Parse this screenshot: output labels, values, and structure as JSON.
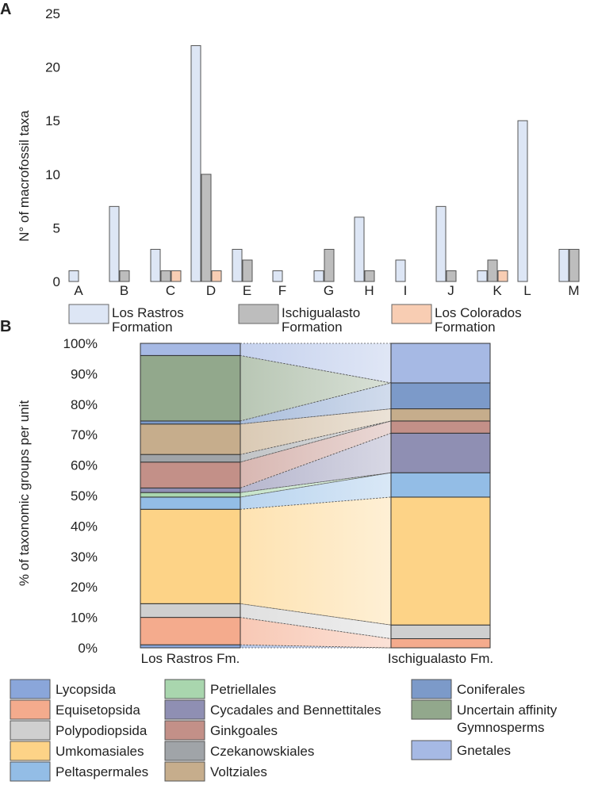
{
  "chart_data": [
    {
      "panel": "A",
      "type": "bar",
      "ylabel": "N° of macrofossil taxa",
      "xlabel": "",
      "ylim": [
        0,
        25
      ],
      "yticks": [
        0,
        5,
        10,
        15,
        20,
        25
      ],
      "categories": [
        "A",
        "B",
        "C",
        "D",
        "E",
        "F",
        "G",
        "H",
        "I",
        "J",
        "K",
        "L",
        "M"
      ],
      "series": [
        {
          "name": "Los Rastros Formation",
          "line1": "Los Rastros",
          "line2": "Formation",
          "color": "#dde6f5",
          "values": [
            1,
            7,
            3,
            22,
            3,
            1,
            1,
            6,
            2,
            7,
            1,
            15,
            3
          ]
        },
        {
          "name": "Ischigualasto Formation",
          "line1": "Ischigualasto",
          "line2": "Formation",
          "color": "#bdbdbd",
          "values": [
            0,
            1,
            1,
            10,
            2,
            0,
            3,
            1,
            0,
            1,
            2,
            0,
            3
          ]
        },
        {
          "name": "Los Colorados Formation",
          "line1": "Los Colorados",
          "line2": "Formation",
          "color": "#f8cdb3",
          "values": [
            0,
            0,
            1,
            1,
            0,
            0,
            0,
            0,
            0,
            0,
            1,
            0,
            0
          ]
        }
      ]
    },
    {
      "panel": "B",
      "type": "stacked_bar",
      "ylabel": "% of taxonomic groups per unit",
      "ylim": [
        0,
        100
      ],
      "yticks": [
        "0%",
        "10%",
        "20%",
        "30%",
        "40%",
        "50%",
        "60%",
        "70%",
        "80%",
        "90%",
        "100%"
      ],
      "bar_labels": [
        "Los Rastros Fm.",
        "Ischigualasto Fm."
      ],
      "groups": [
        {
          "name": "Lycopsida",
          "color": "#8aa6da",
          "values": [
            1,
            0
          ]
        },
        {
          "name": "Equisetopsida",
          "color": "#f4ab8d",
          "values": [
            9,
            3
          ]
        },
        {
          "name": "Polypodiopsida",
          "color": "#cfcfcf",
          "values": [
            4.5,
            4.5
          ]
        },
        {
          "name": "Umkomasiales",
          "color": "#fdd387",
          "values": [
            31,
            42
          ]
        },
        {
          "name": "Peltaspermales",
          "color": "#93bde6",
          "values": [
            4,
            8
          ]
        },
        {
          "name": "Petriellales",
          "color": "#a9d6ae",
          "values": [
            1.5,
            0
          ]
        },
        {
          "name": "Cycadales and Bennettitales",
          "color": "#8f8fb3",
          "values": [
            1.5,
            13
          ]
        },
        {
          "name": "Ginkgoales",
          "color": "#c39088",
          "values": [
            8.5,
            4
          ]
        },
        {
          "name": "Czekanowskiales",
          "color": "#a0a4a8",
          "values": [
            2.5,
            0
          ]
        },
        {
          "name": "Voltziales",
          "color": "#c6ad8c",
          "values": [
            10,
            4
          ]
        },
        {
          "name": "Coniferales",
          "color": "#7c9ac9",
          "values": [
            1,
            8.5
          ]
        },
        {
          "name": "Uncertain affinity Gymnosperms",
          "color": "#92a88c",
          "values": [
            21.5,
            0
          ]
        },
        {
          "name": "Gnetales",
          "color": "#a6b9e4",
          "values": [
            4,
            13
          ]
        }
      ]
    }
  ],
  "panels": {
    "a_label": "A",
    "b_label": "B"
  },
  "legend_b": {
    "col1": [
      "Lycopsida",
      "Equisetopsida",
      "Polypodiopsida",
      "Umkomasiales",
      "Peltaspermales"
    ],
    "col2": [
      "Petriellales",
      "Cycadales and Bennettitales",
      "Ginkgoales",
      "Czekanowskiales",
      "Voltziales"
    ],
    "col3": [
      "Coniferales",
      "Uncertain affinity",
      "Gymnosperms",
      "Gnetales"
    ]
  }
}
